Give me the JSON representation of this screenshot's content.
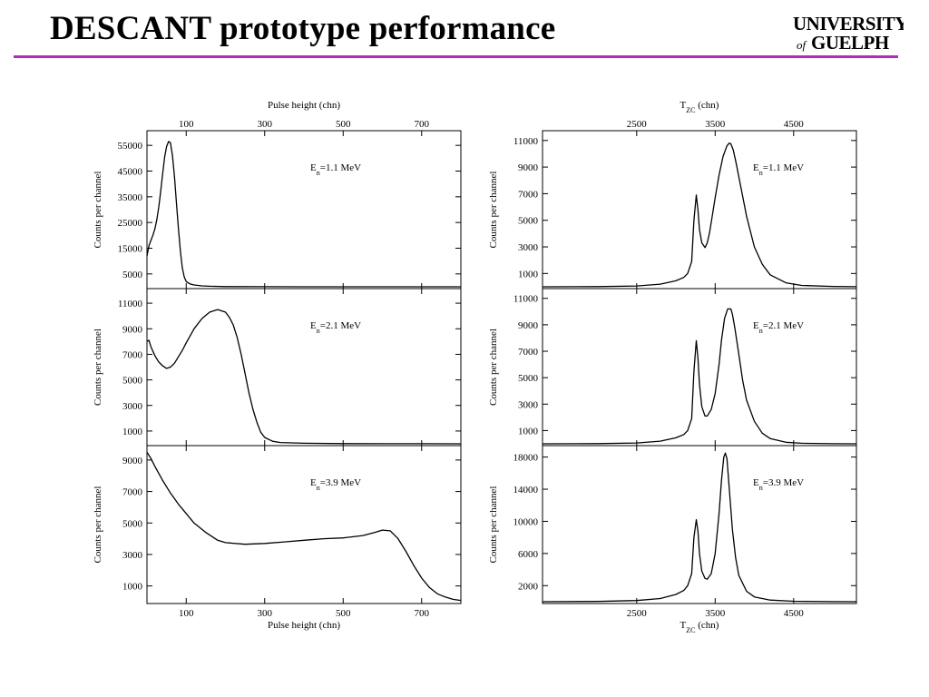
{
  "slide": {
    "title": "DESCANT prototype performance",
    "logo_line1": "UNIVERSITY",
    "logo_of": "of",
    "logo_line2": "GUELPH"
  },
  "colors": {
    "rule": "#b02cc0",
    "trace": "#000000"
  },
  "chart_data": [
    {
      "type": "line",
      "column": "left",
      "ylabel": "Counts per channel",
      "xlim": [
        0,
        800
      ],
      "xticks": [
        100,
        300,
        500,
        700
      ],
      "xlabel_top": "Pulse height (chn)",
      "xlabel_bottom": "Pulse height (chn)",
      "panels": [
        {
          "label_main": "E",
          "label_sub": "n",
          "label_rest": "=1.1 MeV",
          "ylim": [
            0,
            60000
          ],
          "yticks": [
            5000,
            15000,
            25000,
            35000,
            45000,
            55000
          ],
          "x": [
            0,
            5,
            10,
            15,
            20,
            25,
            30,
            35,
            40,
            45,
            50,
            55,
            60,
            65,
            70,
            75,
            80,
            85,
            90,
            95,
            100,
            110,
            120,
            140,
            160,
            200,
            300,
            400,
            500,
            600,
            700,
            800
          ],
          "y": [
            12000,
            16000,
            18000,
            20000,
            22500,
            26000,
            31000,
            37000,
            44000,
            50500,
            54500,
            56500,
            56000,
            51000,
            43000,
            33000,
            23000,
            14000,
            7500,
            3800,
            2000,
            1100,
            700,
            350,
            200,
            80,
            20,
            8,
            4,
            2,
            1,
            0
          ]
        },
        {
          "label_main": "E",
          "label_sub": "n",
          "label_rest": "=2.1 MeV",
          "ylim": [
            0,
            12000
          ],
          "yticks": [
            1000,
            3000,
            5000,
            7000,
            9000,
            11000
          ],
          "x": [
            0,
            5,
            10,
            20,
            30,
            40,
            50,
            60,
            70,
            80,
            90,
            100,
            120,
            140,
            160,
            180,
            200,
            210,
            220,
            230,
            240,
            250,
            260,
            270,
            280,
            290,
            300,
            320,
            340,
            400,
            500,
            600,
            700,
            800
          ],
          "y": [
            8000,
            8100,
            7600,
            6900,
            6400,
            6100,
            5900,
            6000,
            6300,
            6800,
            7300,
            7900,
            9000,
            9800,
            10300,
            10500,
            10300,
            9900,
            9300,
            8300,
            7000,
            5500,
            4000,
            2700,
            1700,
            900,
            500,
            200,
            100,
            40,
            15,
            8,
            4,
            2
          ]
        },
        {
          "label_main": "E",
          "label_sub": "n",
          "label_rest": "=3.9 MeV",
          "ylim": [
            0,
            9800
          ],
          "yticks": [
            1000,
            3000,
            5000,
            7000,
            9000
          ],
          "x": [
            0,
            10,
            20,
            40,
            60,
            80,
            100,
            120,
            150,
            180,
            200,
            250,
            300,
            350,
            400,
            450,
            500,
            550,
            580,
            600,
            620,
            640,
            660,
            680,
            700,
            720,
            740,
            760,
            780,
            800
          ],
          "y": [
            9500,
            9100,
            8600,
            7700,
            6900,
            6200,
            5600,
            5000,
            4400,
            3900,
            3750,
            3650,
            3700,
            3800,
            3900,
            4000,
            4050,
            4200,
            4400,
            4550,
            4500,
            4000,
            3200,
            2300,
            1500,
            900,
            500,
            300,
            150,
            80
          ]
        }
      ]
    },
    {
      "type": "line",
      "column": "right",
      "ylabel": "Counts per channel",
      "xlim": [
        1300,
        5300
      ],
      "xticks": [
        2500,
        3500,
        4500
      ],
      "xlabel_top_main": "T",
      "xlabel_top_sub": "ZC",
      "xlabel_top_rest": " (chn)",
      "xlabel_bottom_main": "T",
      "xlabel_bottom_sub": "ZC",
      "xlabel_bottom_rest": " (chn)",
      "panels": [
        {
          "label_main": "E",
          "label_sub": "n",
          "label_rest": "=1.1 MeV",
          "ylim": [
            0,
            11600
          ],
          "yticks": [
            1000,
            3000,
            5000,
            7000,
            9000,
            11000
          ],
          "x": [
            1300,
            2000,
            2500,
            2800,
            3000,
            3100,
            3150,
            3200,
            3230,
            3260,
            3280,
            3300,
            3330,
            3370,
            3400,
            3430,
            3460,
            3500,
            3550,
            3600,
            3650,
            3680,
            3700,
            3730,
            3760,
            3800,
            3850,
            3900,
            4000,
            4100,
            4200,
            4400,
            4600,
            5000,
            5300
          ],
          "y": [
            0,
            15,
            60,
            200,
            450,
            700,
            1000,
            1900,
            5000,
            6900,
            5800,
            4300,
            3300,
            2950,
            3300,
            4100,
            5200,
            6700,
            8400,
            9800,
            10600,
            10800,
            10750,
            10300,
            9500,
            8300,
            6800,
            5300,
            3000,
            1700,
            900,
            300,
            100,
            25,
            5
          ]
        },
        {
          "label_main": "E",
          "label_sub": "n",
          "label_rest": "=2.1 MeV",
          "ylim": [
            0,
            11600
          ],
          "yticks": [
            1000,
            3000,
            5000,
            7000,
            9000,
            11000
          ],
          "x": [
            1300,
            2000,
            2500,
            2800,
            3000,
            3100,
            3150,
            3200,
            3230,
            3260,
            3280,
            3300,
            3330,
            3370,
            3400,
            3450,
            3500,
            3550,
            3580,
            3620,
            3660,
            3700,
            3720,
            3750,
            3800,
            3850,
            3900,
            4000,
            4100,
            4200,
            4400,
            4600,
            5000,
            5300
          ],
          "y": [
            0,
            15,
            60,
            200,
            450,
            700,
            1000,
            1900,
            5500,
            7800,
            6500,
            4500,
            2800,
            2100,
            2100,
            2600,
            3800,
            6000,
            7800,
            9500,
            10200,
            10200,
            9800,
            8800,
            6800,
            4800,
            3300,
            1700,
            800,
            400,
            120,
            40,
            10,
            3
          ]
        },
        {
          "label_main": "E",
          "label_sub": "n",
          "label_rest": "=3.9 MeV",
          "ylim": [
            0,
            19200
          ],
          "yticks": [
            2000,
            6000,
            10000,
            14000,
            18000
          ],
          "x": [
            1300,
            2000,
            2500,
            2800,
            3000,
            3100,
            3150,
            3200,
            3230,
            3260,
            3280,
            3300,
            3330,
            3370,
            3400,
            3450,
            3500,
            3550,
            3580,
            3610,
            3630,
            3650,
            3680,
            3720,
            3760,
            3800,
            3900,
            4000,
            4200,
            4500,
            5000,
            5300
          ],
          "y": [
            0,
            30,
            150,
            400,
            900,
            1400,
            2000,
            3500,
            8000,
            10200,
            8800,
            6000,
            3800,
            2900,
            2800,
            3500,
            6000,
            11000,
            15000,
            18000,
            18500,
            17800,
            14000,
            9000,
            5500,
            3300,
            1300,
            600,
            200,
            60,
            15,
            5
          ]
        }
      ]
    }
  ]
}
